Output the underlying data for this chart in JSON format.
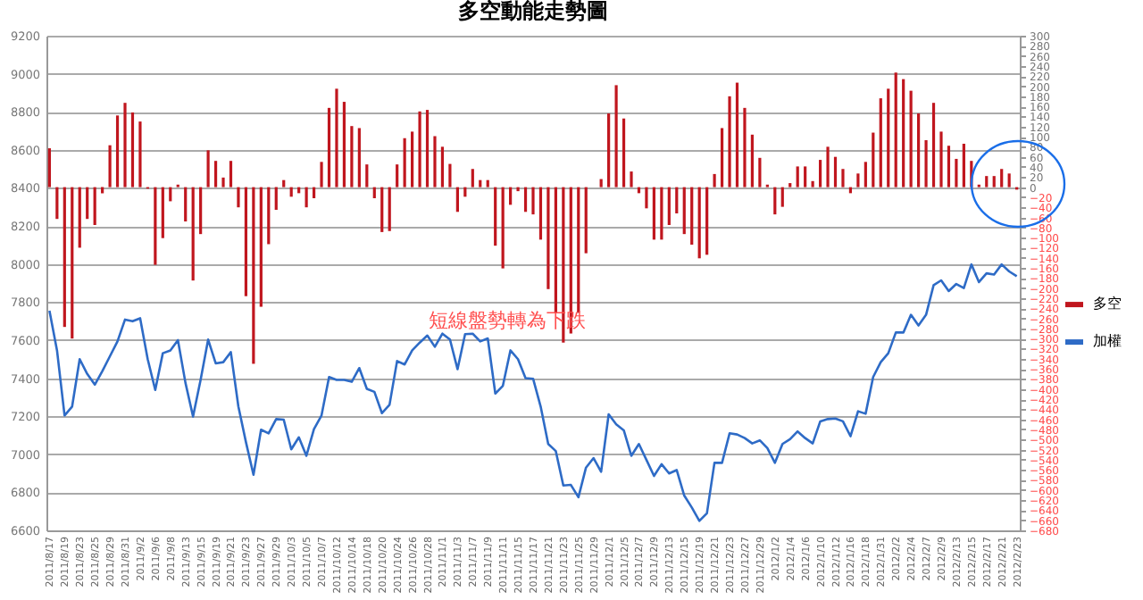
{
  "chart_data": {
    "type": "bar",
    "title": "多空動能走勢圖",
    "categories": [
      "2011/8/17",
      null,
      "2011/8/19",
      null,
      "2011/8/23",
      null,
      "2011/8/25",
      null,
      "2011/8/29",
      null,
      "2011/8/31",
      null,
      "2011/9/2",
      null,
      "2011/9/6",
      null,
      "2011/9/8",
      null,
      "2011/9/13",
      null,
      "2011/9/15",
      null,
      "2011/9/19",
      null,
      "2011/9/21",
      null,
      "2011/9/23",
      null,
      "2011/9/27",
      null,
      "2011/9/29",
      null,
      "2011/10/3",
      null,
      "2011/10/5",
      null,
      "2011/10/7",
      null,
      "2011/10/12",
      null,
      "2011/10/14",
      null,
      "2011/10/18",
      null,
      "2011/10/20",
      null,
      "2011/10/24",
      null,
      "2011/10/26",
      null,
      "2011/10/28",
      null,
      "2011/11/1",
      null,
      "2011/11/3",
      null,
      "2011/11/7",
      null,
      "2011/11/9",
      null,
      "2011/11/11",
      null,
      "2011/11/15",
      null,
      "2011/11/17",
      null,
      "2011/11/21",
      null,
      "2011/11/23",
      null,
      "2011/11/25",
      null,
      "2011/11/29",
      null,
      "2011/12/1",
      null,
      "2011/12/5",
      null,
      "2011/12/7",
      null,
      "2011/12/9",
      null,
      "2011/12/13",
      null,
      "2011/12/15",
      null,
      "2011/12/19",
      null,
      "2011/12/21",
      null,
      "2011/12/23",
      null,
      "2011/12/27",
      null,
      "2011/12/29",
      null,
      "2012/1/2",
      null,
      "2012/1/4",
      null,
      "2012/1/6",
      null,
      "2012/1/10",
      null,
      "2012/1/12",
      null,
      "2012/1/16",
      null,
      "2012/1/18",
      null,
      "2012/1/31",
      null,
      "2012/2/2",
      null,
      "2012/2/4",
      null,
      "2012/2/7",
      null,
      "2012/2/9",
      null,
      "2012/2/13",
      null,
      "2012/2/15",
      null,
      "2012/2/17",
      null,
      "2012/2/21",
      null,
      "2012/2/23"
    ],
    "series": [
      {
        "name": "多空",
        "axis": "y2",
        "color": "#c0161e",
        "values": [
          77,
          -63,
          -277,
          -300,
          -120,
          -63,
          -75,
          -12,
          83,
          142,
          167,
          148,
          130,
          -3,
          -154,
          -101,
          -28,
          5,
          -68,
          -185,
          -93,
          73,
          52,
          19,
          52,
          -40,
          -216,
          -350,
          -237,
          -113,
          -45,
          14,
          -19,
          -12,
          -40,
          -22,
          50,
          157,
          195,
          169,
          121,
          117,
          45,
          -22,
          -89,
          -87,
          45,
          97,
          110,
          150,
          153,
          101,
          80,
          46,
          -49,
          -19,
          36,
          14,
          14,
          -116,
          -161,
          -35,
          -8,
          -49,
          -54,
          -104,
          -202,
          -249,
          -308,
          -290,
          -249,
          -131,
          0,
          16,
          146,
          202,
          136,
          31,
          -12,
          -42,
          -104,
          -104,
          -75,
          -52,
          -93,
          -114,
          -141,
          -134,
          26,
          117,
          180,
          207,
          157,
          104,
          58,
          5,
          -54,
          -39,
          8,
          41,
          41,
          12,
          54,
          80,
          60,
          36,
          -12,
          27,
          50,
          108,
          176,
          195,
          227,
          214,
          191,
          146,
          93,
          167,
          110,
          82,
          56,
          86,
          52,
          5,
          22,
          22,
          36,
          27,
          -5
        ]
      },
      {
        "name": "加權",
        "type": "line",
        "color": "#2e6bc6",
        "values": [
          7755,
          7546,
          7204,
          7251,
          7500,
          7422,
          7366,
          7437,
          7515,
          7593,
          7708,
          7699,
          7715,
          7500,
          7338,
          7531,
          7546,
          7600,
          7375,
          7198,
          7391,
          7603,
          7478,
          7484,
          7537,
          7251,
          7064,
          6892,
          7129,
          7110,
          7185,
          7182,
          7026,
          7089,
          6992,
          7132,
          7204,
          7406,
          7391,
          7391,
          7381,
          7453,
          7344,
          7328,
          7216,
          7260,
          7490,
          7472,
          7546,
          7587,
          7624,
          7565,
          7634,
          7603,
          7447,
          7631,
          7634,
          7593,
          7609,
          7319,
          7360,
          7546,
          7500,
          7400,
          7397,
          7251,
          7054,
          7017,
          6836,
          6839,
          6774,
          6930,
          6980,
          6908,
          7210,
          7157,
          7126,
          6992,
          7054,
          6970,
          6886,
          6948,
          6899,
          6917,
          6783,
          6720,
          6650,
          6690,
          6955,
          6955,
          7110,
          7104,
          7085,
          7057,
          7073,
          7032,
          6955,
          7054,
          7079,
          7120,
          7085,
          7057,
          7173,
          7185,
          7188,
          7173,
          7095,
          7226,
          7213,
          7406,
          7484,
          7531,
          7640,
          7640,
          7733,
          7677,
          7733,
          7889,
          7914,
          7858,
          7895,
          7874,
          7998,
          7905,
          7951,
          7945,
          7998,
          7961,
          7936
        ]
      }
    ],
    "ylim": [
      6600,
      9200
    ],
    "yticks": [
      6600,
      6800,
      7000,
      7200,
      7400,
      7600,
      7800,
      8000,
      8200,
      8400,
      8600,
      8800,
      9000,
      9200
    ],
    "y2lim": [
      -680,
      300
    ],
    "y2ticks": [
      -680,
      -660,
      -640,
      -620,
      -600,
      -580,
      -560,
      -540,
      -520,
      -500,
      -480,
      -460,
      -440,
      -420,
      -400,
      -380,
      -360,
      -340,
      -320,
      -300,
      -280,
      -260,
      -240,
      -220,
      -200,
      -180,
      -160,
      -140,
      -120,
      -100,
      -80,
      -60,
      -40,
      -20,
      0,
      20,
      40,
      60,
      80,
      100,
      120,
      140,
      160,
      180,
      200,
      220,
      240,
      260,
      280,
      300
    ],
    "grid": "y",
    "legend": "right",
    "annotations": [
      "短線盤勢轉為下跌"
    ]
  }
}
